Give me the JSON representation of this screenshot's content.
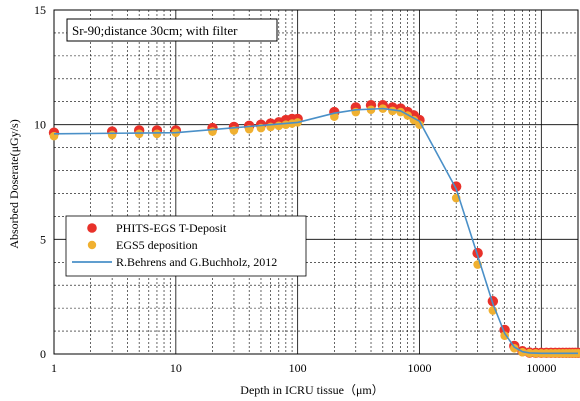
{
  "chart_data": {
    "type": "scatter",
    "annotation": "Sr-90;distance 30cm; with filter",
    "xlabel": "Depth in ICRU tissue（μm）",
    "ylabel": "Absorbed Doserate(μGy/s)",
    "x_scale": "log",
    "xlim": [
      1,
      20000
    ],
    "ylim": [
      0,
      15
    ],
    "x_ticks": [
      1,
      10,
      100,
      1000,
      10000
    ],
    "x_tick_labels": [
      "1",
      "10",
      "100",
      "1000",
      "10000"
    ],
    "y_ticks": [
      0,
      5,
      10,
      15
    ],
    "y_tick_labels": [
      "0",
      "5",
      "10",
      "15"
    ],
    "grid": true,
    "legend_position": "lower-left",
    "series": [
      {
        "name": "PHITS-EGS T-Deposit",
        "type": "scatter",
        "color": "#e8312a",
        "points": [
          [
            1,
            9.65
          ],
          [
            3,
            9.7
          ],
          [
            5,
            9.75
          ],
          [
            7,
            9.75
          ],
          [
            10,
            9.75
          ],
          [
            20,
            9.85
          ],
          [
            30,
            9.9
          ],
          [
            40,
            9.95
          ],
          [
            50,
            10.0
          ],
          [
            60,
            10.05
          ],
          [
            70,
            10.1
          ],
          [
            80,
            10.2
          ],
          [
            90,
            10.25
          ],
          [
            100,
            10.25
          ],
          [
            200,
            10.55
          ],
          [
            300,
            10.75
          ],
          [
            400,
            10.85
          ],
          [
            500,
            10.85
          ],
          [
            600,
            10.75
          ],
          [
            700,
            10.7
          ],
          [
            800,
            10.55
          ],
          [
            900,
            10.4
          ],
          [
            1000,
            10.2
          ],
          [
            2000,
            7.3
          ],
          [
            3000,
            4.4
          ],
          [
            4000,
            2.3
          ],
          [
            5000,
            1.05
          ],
          [
            6000,
            0.35
          ],
          [
            7000,
            0.12
          ],
          [
            8000,
            0.06
          ],
          [
            9000,
            0.05
          ],
          [
            10000,
            0.05
          ],
          [
            11000,
            0.05
          ],
          [
            12000,
            0.05
          ],
          [
            13000,
            0.05
          ],
          [
            14000,
            0.05
          ],
          [
            15000,
            0.05
          ],
          [
            16000,
            0.05
          ],
          [
            17000,
            0.05
          ],
          [
            18000,
            0.05
          ],
          [
            19000,
            0.05
          ],
          [
            20000,
            0.05
          ]
        ]
      },
      {
        "name": "EGS5 deposition",
        "type": "scatter",
        "color": "#f0b030",
        "points": [
          [
            1,
            9.5
          ],
          [
            3,
            9.55
          ],
          [
            5,
            9.6
          ],
          [
            7,
            9.6
          ],
          [
            10,
            9.65
          ],
          [
            20,
            9.7
          ],
          [
            30,
            9.75
          ],
          [
            40,
            9.8
          ],
          [
            50,
            9.85
          ],
          [
            60,
            9.9
          ],
          [
            70,
            9.95
          ],
          [
            80,
            10.0
          ],
          [
            90,
            10.05
          ],
          [
            100,
            10.1
          ],
          [
            200,
            10.35
          ],
          [
            300,
            10.55
          ],
          [
            400,
            10.65
          ],
          [
            500,
            10.7
          ],
          [
            600,
            10.6
          ],
          [
            700,
            10.55
          ],
          [
            800,
            10.4
          ],
          [
            900,
            10.2
          ],
          [
            1000,
            10.0
          ],
          [
            2000,
            6.8
          ],
          [
            3000,
            3.9
          ],
          [
            4000,
            1.9
          ],
          [
            5000,
            0.8
          ],
          [
            6000,
            0.25
          ],
          [
            7000,
            0.08
          ],
          [
            8000,
            0.04
          ],
          [
            9000,
            0.03
          ],
          [
            10000,
            0.03
          ],
          [
            11000,
            0.03
          ],
          [
            12000,
            0.03
          ],
          [
            13000,
            0.03
          ],
          [
            14000,
            0.03
          ],
          [
            15000,
            0.03
          ],
          [
            16000,
            0.03
          ],
          [
            17000,
            0.03
          ],
          [
            18000,
            0.03
          ],
          [
            19000,
            0.03
          ],
          [
            20000,
            0.03
          ]
        ]
      },
      {
        "name": "R.Behrens and G.Buchholz, 2012",
        "type": "line",
        "color": "#4a90c8",
        "points": [
          [
            1,
            9.6
          ],
          [
            10,
            9.65
          ],
          [
            100,
            10.1
          ],
          [
            200,
            10.5
          ],
          [
            300,
            10.65
          ],
          [
            500,
            10.7
          ],
          [
            700,
            10.6
          ],
          [
            1000,
            10.15
          ],
          [
            2000,
            7.2
          ],
          [
            3000,
            4.3
          ],
          [
            4000,
            2.2
          ],
          [
            5000,
            0.9
          ],
          [
            6000,
            0.3
          ],
          [
            7000,
            0.1
          ],
          [
            8000,
            0.05
          ],
          [
            10000,
            0.03
          ],
          [
            20000,
            0.03
          ]
        ]
      }
    ]
  }
}
